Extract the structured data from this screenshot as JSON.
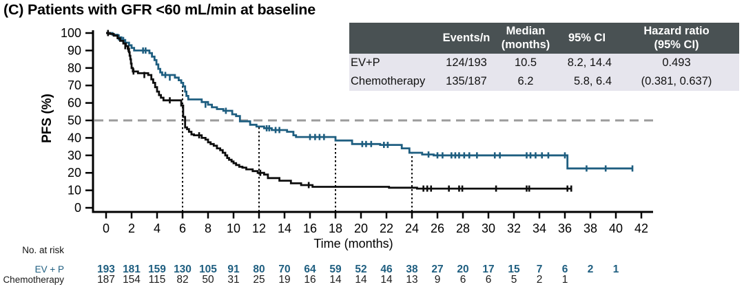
{
  "title": "(C) Patients with GFR <60 mL/min at baseline",
  "stats_table": {
    "headers": [
      "",
      "Events/n",
      "Median\n(months)",
      "95% CI",
      "Hazard ratio\n(95% CI)"
    ],
    "rows": [
      {
        "name": "EV+P",
        "events": "124/193",
        "median": "10.5",
        "ci": "8.2, 14.4",
        "hr": "0.493"
      },
      {
        "name": "Chemotherapy",
        "events": "135/187",
        "median": "6.2",
        "ci": "5.8, 6.4",
        "hr": "(0.381, 0.637)"
      }
    ]
  },
  "chart_data": {
    "type": "line",
    "subtype": "kaplan-meier-step",
    "title": "(C) Patients with GFR <60 mL/min at baseline",
    "xlabel": "Time (months)",
    "ylabel": "PFS (%)",
    "xlim": [
      0,
      42
    ],
    "ylim": [
      0,
      100
    ],
    "xtick_step": 2,
    "ytick_step": 10,
    "grid": false,
    "reference_line": {
      "y": 50,
      "color": "#9b9b9b",
      "style": "dashed"
    },
    "landmark_lines_x": [
      6,
      12,
      18,
      24
    ],
    "series": [
      {
        "name": "EV + P",
        "color": "#1e5e80",
        "steps": [
          [
            0,
            100
          ],
          [
            0.5,
            99
          ],
          [
            0.9,
            97.5
          ],
          [
            1.2,
            96
          ],
          [
            1.5,
            94.5
          ],
          [
            1.8,
            93
          ],
          [
            2.0,
            91.5
          ],
          [
            2.2,
            90
          ],
          [
            3.4,
            88.5
          ],
          [
            3.6,
            86.5
          ],
          [
            3.8,
            84.5
          ],
          [
            3.95,
            82
          ],
          [
            4.1,
            79.5
          ],
          [
            4.25,
            77.5
          ],
          [
            4.4,
            76
          ],
          [
            5.4,
            74.5
          ],
          [
            5.7,
            73
          ],
          [
            5.9,
            71.5
          ],
          [
            6.05,
            69.5
          ],
          [
            6.2,
            66.5
          ],
          [
            6.3,
            64
          ],
          [
            6.45,
            62
          ],
          [
            7.5,
            60.5
          ],
          [
            8.0,
            59
          ],
          [
            8.3,
            57.5
          ],
          [
            8.7,
            56.5
          ],
          [
            9.2,
            55.5
          ],
          [
            9.9,
            53.5
          ],
          [
            10.2,
            52.5
          ],
          [
            10.5,
            49.5
          ],
          [
            11.3,
            47.5
          ],
          [
            11.8,
            46.5
          ],
          [
            12.4,
            45.5
          ],
          [
            13.0,
            44.5
          ],
          [
            14.2,
            43.5
          ],
          [
            14.7,
            41.5
          ],
          [
            14.9,
            40.5
          ],
          [
            18.0,
            38.5
          ],
          [
            19.3,
            36.5
          ],
          [
            21.5,
            36
          ],
          [
            23.2,
            34
          ],
          [
            23.8,
            31.5
          ],
          [
            24.8,
            30.5
          ],
          [
            25.7,
            30
          ],
          [
            36.2,
            22.5
          ],
          [
            41.3,
            22.5
          ]
        ],
        "censors": [
          [
            1.0,
            97.5
          ],
          [
            1.35,
            96
          ],
          [
            2.9,
            90
          ],
          [
            3.1,
            90
          ],
          [
            4.65,
            76
          ],
          [
            5.0,
            74.5
          ],
          [
            7.8,
            59
          ],
          [
            9.4,
            55.5
          ],
          [
            12.6,
            45.5
          ],
          [
            12.8,
            45.5
          ],
          [
            13.3,
            44.5
          ],
          [
            13.6,
            44.5
          ],
          [
            16.0,
            40.5
          ],
          [
            16.4,
            40.5
          ],
          [
            16.75,
            40.5
          ],
          [
            17.1,
            40.5
          ],
          [
            20.1,
            36.5
          ],
          [
            20.4,
            36.5
          ],
          [
            20.8,
            36.5
          ],
          [
            21.8,
            36
          ],
          [
            22.1,
            36
          ],
          [
            25.3,
            30.5
          ],
          [
            26.0,
            30
          ],
          [
            26.4,
            30
          ],
          [
            27.1,
            30
          ],
          [
            27.4,
            30
          ],
          [
            27.7,
            30
          ],
          [
            28.1,
            30
          ],
          [
            28.5,
            30
          ],
          [
            29.1,
            30
          ],
          [
            30.5,
            30
          ],
          [
            30.9,
            30
          ],
          [
            33.0,
            30
          ],
          [
            33.3,
            30
          ],
          [
            33.7,
            30
          ],
          [
            34.2,
            30
          ],
          [
            34.7,
            30
          ],
          [
            36.0,
            30
          ],
          [
            37.7,
            22.5
          ],
          [
            39.2,
            22.5
          ],
          [
            41.3,
            22.5
          ]
        ]
      },
      {
        "name": "Chemotherapy",
        "color": "#0d0d0d",
        "steps": [
          [
            0,
            100
          ],
          [
            0.3,
            99.5
          ],
          [
            0.6,
            98.5
          ],
          [
            0.9,
            97
          ],
          [
            1.1,
            95.5
          ],
          [
            1.35,
            94
          ],
          [
            1.55,
            92.5
          ],
          [
            1.7,
            91
          ],
          [
            1.8,
            89
          ],
          [
            1.85,
            87
          ],
          [
            1.9,
            85
          ],
          [
            1.95,
            82.5
          ],
          [
            2.0,
            80
          ],
          [
            2.1,
            78
          ],
          [
            2.5,
            77
          ],
          [
            3.3,
            76
          ],
          [
            3.55,
            73.5
          ],
          [
            3.7,
            71.5
          ],
          [
            3.85,
            69
          ],
          [
            4.0,
            66.5
          ],
          [
            4.15,
            64.5
          ],
          [
            4.3,
            63
          ],
          [
            4.5,
            61.5
          ],
          [
            5.9,
            58.5
          ],
          [
            6.05,
            52
          ],
          [
            6.2,
            46
          ],
          [
            6.35,
            45
          ],
          [
            6.5,
            43.5
          ],
          [
            6.7,
            42
          ],
          [
            6.9,
            41.5
          ],
          [
            7.5,
            40
          ],
          [
            7.8,
            39
          ],
          [
            8.0,
            37.5
          ],
          [
            8.2,
            36.5
          ],
          [
            8.45,
            35.5
          ],
          [
            8.7,
            34
          ],
          [
            8.95,
            33
          ],
          [
            9.15,
            31.5
          ],
          [
            9.35,
            30
          ],
          [
            9.5,
            28.5
          ],
          [
            9.65,
            27.5
          ],
          [
            9.85,
            26.5
          ],
          [
            10.0,
            25.5
          ],
          [
            10.2,
            24.5
          ],
          [
            10.45,
            23.5
          ],
          [
            10.7,
            23
          ],
          [
            11.0,
            22
          ],
          [
            11.5,
            21
          ],
          [
            11.9,
            20
          ],
          [
            12.4,
            19
          ],
          [
            12.7,
            17
          ],
          [
            13.6,
            15.5
          ],
          [
            14.5,
            14
          ],
          [
            15.3,
            13
          ],
          [
            16.2,
            12
          ],
          [
            22.2,
            11.5
          ],
          [
            24.4,
            11
          ],
          [
            36.5,
            11
          ]
        ],
        "censors": [
          [
            0.15,
            100
          ],
          [
            1.5,
            92.5
          ],
          [
            1.75,
            91
          ],
          [
            2.15,
            78
          ],
          [
            3.0,
            76
          ],
          [
            5.0,
            61.5
          ],
          [
            7.3,
            41.5
          ],
          [
            12.1,
            20
          ],
          [
            15.9,
            13
          ],
          [
            24.9,
            11
          ],
          [
            25.2,
            11
          ],
          [
            25.5,
            11
          ],
          [
            26.9,
            11
          ],
          [
            27.7,
            11
          ],
          [
            27.95,
            11
          ],
          [
            30.6,
            11
          ],
          [
            33.0,
            11
          ],
          [
            33.2,
            11
          ],
          [
            36.2,
            11
          ],
          [
            36.5,
            11
          ]
        ]
      }
    ],
    "risk_table": {
      "label": "No. at risk",
      "timepoint_step": 2,
      "rows": [
        {
          "name": "EV + P",
          "color": "#1e5e80",
          "bold": true,
          "values": [
            193,
            181,
            159,
            130,
            105,
            91,
            80,
            70,
            64,
            59,
            52,
            46,
            38,
            27,
            20,
            17,
            15,
            7,
            6,
            2,
            1
          ]
        },
        {
          "name": "Chemotherapy",
          "color": "#1a1a1a",
          "bold": false,
          "values": [
            187,
            154,
            115,
            82,
            50,
            31,
            25,
            19,
            16,
            14,
            14,
            14,
            13,
            9,
            6,
            6,
            5,
            2,
            1
          ]
        }
      ]
    }
  },
  "colors": {
    "evp_blue": "#1e5e80",
    "chemo_black": "#0d0d0d",
    "reference_gray": "#9b9b9b",
    "table_header_bg": "#495153",
    "table_row_bg": "#e6e5ed"
  }
}
